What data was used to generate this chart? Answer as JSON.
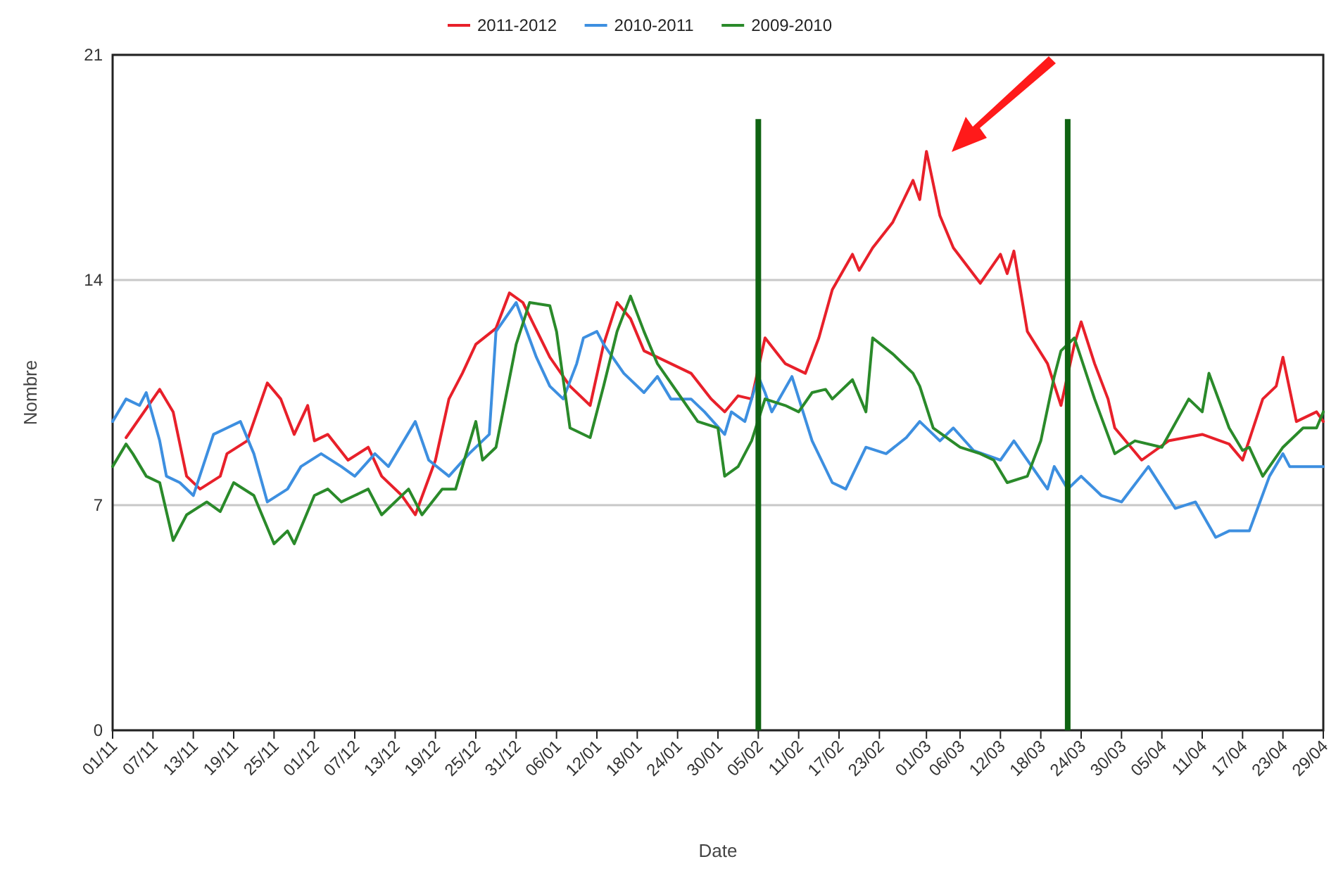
{
  "chart_data": {
    "type": "line",
    "xlabel": "Date",
    "ylabel": "Nombre",
    "xlim": [
      "2011-11-01",
      "2012-04-29"
    ],
    "xticks": [
      {
        "value": "2011-11-01",
        "label": "01/11"
      },
      {
        "value": "2011-11-07",
        "label": "07/11"
      },
      {
        "value": "2011-11-13",
        "label": "13/11"
      },
      {
        "value": "2011-11-19",
        "label": "19/11"
      },
      {
        "value": "2011-11-25",
        "label": "25/11"
      },
      {
        "value": "2011-12-01",
        "label": "01/12"
      },
      {
        "value": "2011-12-07",
        "label": "07/12"
      },
      {
        "value": "2011-12-13",
        "label": "13/12"
      },
      {
        "value": "2011-12-19",
        "label": "19/12"
      },
      {
        "value": "2011-12-25",
        "label": "25/12"
      },
      {
        "value": "2011-12-31",
        "label": "31/12"
      },
      {
        "value": "2012-01-06",
        "label": "06/01"
      },
      {
        "value": "2012-01-12",
        "label": "12/01"
      },
      {
        "value": "2012-01-18",
        "label": "18/01"
      },
      {
        "value": "2012-01-24",
        "label": "24/01"
      },
      {
        "value": "2012-01-30",
        "label": "30/01"
      },
      {
        "value": "2012-02-05",
        "label": "05/02"
      },
      {
        "value": "2012-02-11",
        "label": "11/02"
      },
      {
        "value": "2012-02-17",
        "label": "17/02"
      },
      {
        "value": "2012-02-23",
        "label": "23/02"
      },
      {
        "value": "2012-03-01",
        "label": "01/03"
      },
      {
        "value": "2012-03-06",
        "label": "06/03"
      },
      {
        "value": "2012-03-12",
        "label": "12/03"
      },
      {
        "value": "2012-03-18",
        "label": "18/03"
      },
      {
        "value": "2012-03-24",
        "label": "24/03"
      },
      {
        "value": "2012-03-30",
        "label": "30/03"
      },
      {
        "value": "2012-04-05",
        "label": "05/04"
      },
      {
        "value": "2012-04-11",
        "label": "11/04"
      },
      {
        "value": "2012-04-17",
        "label": "17/04"
      },
      {
        "value": "2012-04-23",
        "label": "23/04"
      },
      {
        "value": "2012-04-29",
        "label": "29/04"
      }
    ],
    "ylim": [
      0,
      21
    ],
    "yticks": [
      0,
      7,
      14,
      21
    ],
    "grid": "y",
    "legend": "top",
    "marker": "none",
    "line_style": "solid",
    "ref_lines": [
      {
        "axis": "x",
        "value": "2012-02-05",
        "color": "#0f6312"
      },
      {
        "axis": "x",
        "value": "2012-03-22",
        "color": "#0f6312"
      }
    ],
    "series": [
      {
        "name": "2011-2012",
        "color": "#e8202a",
        "x": [
          "2011-11-03",
          "2011-11-08",
          "2011-11-10",
          "2011-11-12",
          "2011-11-14",
          "2011-11-17",
          "2011-11-18",
          "2011-11-21",
          "2011-11-24",
          "2011-11-26",
          "2011-11-28",
          "2011-11-30",
          "2011-12-01",
          "2011-12-03",
          "2011-12-06",
          "2011-12-09",
          "2011-12-11",
          "2011-12-14",
          "2011-12-16",
          "2011-12-19",
          "2011-12-21",
          "2011-12-23",
          "2011-12-25",
          "2011-12-28",
          "2011-12-30",
          "2012-01-01",
          "2012-01-05",
          "2012-01-08",
          "2012-01-11",
          "2012-01-13",
          "2012-01-15",
          "2012-01-17",
          "2012-01-19",
          "2012-01-23",
          "2012-01-26",
          "2012-01-29",
          "2012-01-31",
          "2012-02-02",
          "2012-02-04",
          "2012-02-06",
          "2012-02-09",
          "2012-02-12",
          "2012-02-14",
          "2012-02-16",
          "2012-02-19",
          "2012-02-20",
          "2012-02-22",
          "2012-02-25",
          "2012-02-28",
          "2012-02-29",
          "2012-03-01",
          "2012-03-03",
          "2012-03-05",
          "2012-03-09",
          "2012-03-12",
          "2012-03-13",
          "2012-03-14",
          "2012-03-16",
          "2012-03-19",
          "2012-03-21",
          "2012-03-23",
          "2012-03-24",
          "2012-03-26",
          "2012-03-28",
          "2012-03-29",
          "2012-04-02",
          "2012-04-06",
          "2012-04-11",
          "2012-04-15",
          "2012-04-17",
          "2012-04-20",
          "2012-04-22",
          "2012-04-23",
          "2012-04-25",
          "2012-04-28",
          "2012-04-29"
        ],
        "values": [
          9.1,
          10.6,
          9.9,
          7.9,
          7.5,
          7.9,
          8.6,
          9.0,
          10.8,
          10.3,
          9.2,
          10.1,
          9.0,
          9.2,
          8.4,
          8.8,
          7.9,
          7.3,
          6.7,
          8.4,
          10.3,
          11.1,
          12.0,
          12.5,
          13.6,
          13.3,
          11.6,
          10.7,
          10.1,
          12.0,
          13.3,
          12.8,
          11.8,
          11.4,
          11.1,
          10.3,
          9.9,
          10.4,
          10.3,
          12.2,
          11.4,
          11.1,
          12.2,
          13.7,
          14.8,
          14.3,
          15.0,
          15.8,
          17.1,
          16.5,
          18.0,
          16.0,
          15.0,
          13.9,
          14.8,
          14.2,
          14.9,
          12.4,
          11.4,
          10.1,
          12.0,
          12.7,
          11.4,
          10.3,
          9.4,
          8.4,
          9.0,
          9.2,
          8.9,
          8.4,
          10.3,
          10.7,
          11.6,
          9.6,
          9.9,
          9.6
        ]
      },
      {
        "name": "2010-2011",
        "color": "#3d8fe0",
        "x": [
          "2011-11-01",
          "2011-11-03",
          "2011-11-05",
          "2011-11-06",
          "2011-11-08",
          "2011-11-09",
          "2011-11-11",
          "2011-11-13",
          "2011-11-16",
          "2011-11-18",
          "2011-11-20",
          "2011-11-22",
          "2011-11-24",
          "2011-11-27",
          "2011-11-29",
          "2011-12-02",
          "2011-12-05",
          "2011-12-07",
          "2011-12-10",
          "2011-12-12",
          "2011-12-16",
          "2011-12-18",
          "2011-12-21",
          "2011-12-24",
          "2011-12-27",
          "2011-12-28",
          "2011-12-31",
          "2012-01-03",
          "2012-01-05",
          "2012-01-07",
          "2012-01-09",
          "2012-01-10",
          "2012-01-12",
          "2012-01-13",
          "2012-01-16",
          "2012-01-19",
          "2012-01-21",
          "2012-01-23",
          "2012-01-26",
          "2012-01-28",
          "2012-01-31",
          "2012-02-01",
          "2012-02-03",
          "2012-02-05",
          "2012-02-06",
          "2012-02-07",
          "2012-02-10",
          "2012-02-13",
          "2012-02-16",
          "2012-02-18",
          "2012-02-21",
          "2012-02-24",
          "2012-02-27",
          "2012-02-29",
          "2012-03-03",
          "2012-03-05",
          "2012-03-08",
          "2012-03-12",
          "2012-03-14",
          "2012-03-16",
          "2012-03-19",
          "2012-03-20",
          "2012-03-22",
          "2012-03-24",
          "2012-03-27",
          "2012-03-30",
          "2012-04-03",
          "2012-04-07",
          "2012-04-10",
          "2012-04-13",
          "2012-04-15",
          "2012-04-18",
          "2012-04-21",
          "2012-04-23",
          "2012-04-24",
          "2012-04-27",
          "2012-04-29"
        ],
        "values": [
          9.6,
          10.3,
          10.1,
          10.5,
          9.0,
          7.9,
          7.7,
          7.3,
          9.2,
          9.4,
          9.6,
          8.6,
          7.1,
          7.5,
          8.2,
          8.6,
          8.2,
          7.9,
          8.6,
          8.2,
          9.6,
          8.4,
          7.9,
          8.6,
          9.2,
          12.4,
          13.3,
          11.6,
          10.7,
          10.3,
          11.4,
          12.2,
          12.4,
          12.0,
          11.1,
          10.5,
          11.0,
          10.3,
          10.3,
          9.9,
          9.2,
          9.9,
          9.6,
          11.0,
          10.5,
          9.9,
          11.0,
          9.0,
          7.7,
          7.5,
          8.8,
          8.6,
          9.1,
          9.6,
          9.0,
          9.4,
          8.7,
          8.4,
          9.0,
          8.4,
          7.5,
          8.2,
          7.5,
          7.9,
          7.3,
          7.1,
          8.2,
          6.9,
          7.1,
          6.0,
          6.2,
          6.2,
          7.9,
          8.6,
          8.2,
          8.2,
          8.2
        ]
      },
      {
        "name": "2009-2010",
        "color": "#2a8a2a",
        "x": [
          "2011-11-01",
          "2011-11-03",
          "2011-11-04",
          "2011-11-06",
          "2011-11-08",
          "2011-11-10",
          "2011-11-12",
          "2011-11-15",
          "2011-11-17",
          "2011-11-19",
          "2011-11-22",
          "2011-11-25",
          "2011-11-27",
          "2011-11-28",
          "2011-12-01",
          "2011-12-03",
          "2011-12-05",
          "2011-12-07",
          "2011-12-09",
          "2011-12-11",
          "2011-12-15",
          "2011-12-17",
          "2011-12-20",
          "2011-12-22",
          "2011-12-25",
          "2011-12-26",
          "2011-12-28",
          "2011-12-31",
          "2012-01-02",
          "2012-01-05",
          "2012-01-06",
          "2012-01-08",
          "2012-01-11",
          "2012-01-13",
          "2012-01-15",
          "2012-01-17",
          "2012-01-19",
          "2012-01-21",
          "2012-01-24",
          "2012-01-27",
          "2012-01-30",
          "2012-01-31",
          "2012-02-02",
          "2012-02-04",
          "2012-02-06",
          "2012-02-09",
          "2012-02-11",
          "2012-02-13",
          "2012-02-15",
          "2012-02-16",
          "2012-02-19",
          "2012-02-21",
          "2012-02-22",
          "2012-02-25",
          "2012-02-28",
          "2012-02-29",
          "2012-03-02",
          "2012-03-06",
          "2012-03-09",
          "2012-03-11",
          "2012-03-13",
          "2012-03-16",
          "2012-03-18",
          "2012-03-20",
          "2012-03-21",
          "2012-03-23",
          "2012-03-26",
          "2012-03-29",
          "2012-04-01",
          "2012-04-05",
          "2012-04-09",
          "2012-04-11",
          "2012-04-12",
          "2012-04-15",
          "2012-04-17",
          "2012-04-18",
          "2012-04-20",
          "2012-04-23",
          "2012-04-26",
          "2012-04-28",
          "2012-04-29"
        ],
        "values": [
          8.2,
          8.9,
          8.6,
          7.9,
          7.7,
          5.9,
          6.7,
          7.1,
          6.8,
          7.7,
          7.3,
          5.8,
          6.2,
          5.8,
          7.3,
          7.5,
          7.1,
          7.3,
          7.5,
          6.7,
          7.5,
          6.7,
          7.5,
          7.5,
          9.6,
          8.4,
          8.8,
          12.0,
          13.3,
          13.2,
          12.4,
          9.4,
          9.1,
          10.7,
          12.4,
          13.5,
          12.4,
          11.4,
          10.5,
          9.6,
          9.4,
          7.9,
          8.2,
          9.0,
          10.3,
          10.1,
          9.9,
          10.5,
          10.6,
          10.3,
          10.9,
          9.9,
          12.2,
          11.7,
          11.1,
          10.7,
          9.4,
          8.8,
          8.6,
          8.4,
          7.7,
          7.9,
          9.0,
          11.0,
          11.8,
          12.2,
          10.3,
          8.6,
          9.0,
          8.8,
          10.3,
          9.9,
          11.1,
          9.4,
          8.7,
          8.8,
          7.9,
          8.8,
          9.4,
          9.4,
          9.9
        ]
      }
    ]
  }
}
